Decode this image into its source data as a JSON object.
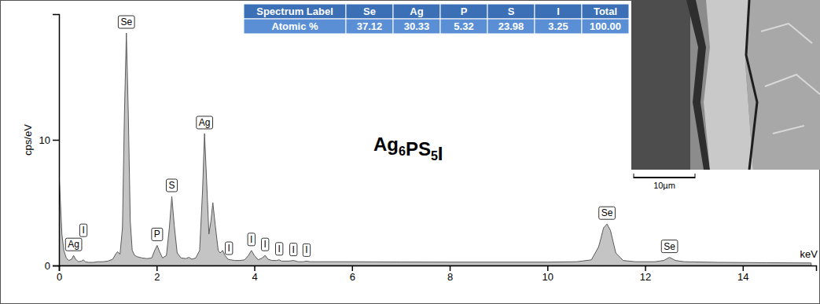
{
  "chart_data": {
    "type": "area",
    "title": "Ag6PS5I",
    "x_label": "keV",
    "y_label": "cps/eV",
    "color": "#c4c4c4",
    "grid": false,
    "xlim": [
      0,
      15.5
    ],
    "ylim": [
      0,
      20
    ],
    "xticks": [
      0,
      2,
      4,
      6,
      8,
      10,
      12,
      14
    ],
    "yticks": [
      0,
      10
    ],
    "x": [
      0,
      0.03,
      0.06,
      0.1,
      0.15,
      0.2,
      0.26,
      0.3,
      0.34,
      0.4,
      0.46,
      0.5,
      0.54,
      0.6,
      0.7,
      0.8,
      0.9,
      1.0,
      1.1,
      1.16,
      1.2,
      1.25,
      1.3,
      1.34,
      1.38,
      1.42,
      1.46,
      1.5,
      1.55,
      1.6,
      1.7,
      1.8,
      1.9,
      1.96,
      2.01,
      2.06,
      2.12,
      2.2,
      2.26,
      2.31,
      2.36,
      2.42,
      2.5,
      2.6,
      2.66,
      2.72,
      2.8,
      2.88,
      2.94,
      2.98,
      3.02,
      3.07,
      3.11,
      3.15,
      3.2,
      3.26,
      3.3,
      3.35,
      3.4,
      3.46,
      3.52,
      3.6,
      3.7,
      3.8,
      3.88,
      3.94,
      4.0,
      4.08,
      4.16,
      4.22,
      4.28,
      4.36,
      4.45,
      4.51,
      4.56,
      4.7,
      4.8,
      4.9,
      5.0,
      5.07,
      5.14,
      5.3,
      5.6,
      6,
      7,
      8,
      9,
      10,
      10.6,
      10.9,
      11.05,
      11.15,
      11.22,
      11.29,
      11.4,
      11.55,
      11.8,
      12.2,
      12.38,
      12.5,
      12.62,
      12.8,
      13.5,
      14.5,
      15.4
    ],
    "values": [
      7.5,
      5,
      2.5,
      1.2,
      0.6,
      0.4,
      0.5,
      0.8,
      0.5,
      0.3,
      0.35,
      0.45,
      0.3,
      0.25,
      0.25,
      0.3,
      0.3,
      0.35,
      0.5,
      0.9,
      1.1,
      0.9,
      3,
      12,
      18.5,
      12,
      3.5,
      1.2,
      0.8,
      0.7,
      0.6,
      0.55,
      0.6,
      1.2,
      1.6,
      1.1,
      0.6,
      0.8,
      3,
      5.5,
      3.2,
      1.0,
      0.6,
      0.55,
      0.65,
      0.5,
      0.6,
      1.2,
      6,
      10.5,
      7,
      2.5,
      3.5,
      5.0,
      3.2,
      1.2,
      1.0,
      1.2,
      0.8,
      0.5,
      0.45,
      0.4,
      0.4,
      0.45,
      0.8,
      1.2,
      0.8,
      0.45,
      0.6,
      0.8,
      0.5,
      0.4,
      0.4,
      0.45,
      0.35,
      0.35,
      0.4,
      0.3,
      0.3,
      0.35,
      0.3,
      0.3,
      0.3,
      0.3,
      0.28,
      0.27,
      0.27,
      0.27,
      0.3,
      0.45,
      1.5,
      3.0,
      3.3,
      2.8,
      1.0,
      0.4,
      0.3,
      0.3,
      0.4,
      0.65,
      0.4,
      0.3,
      0.25,
      0.22,
      0.2
    ],
    "annotations": [
      {
        "text": "Ag",
        "x": 0.3
      },
      {
        "text": "I",
        "x": 0.5
      },
      {
        "text": "Se",
        "x": 1.38
      },
      {
        "text": "P",
        "x": 2.01
      },
      {
        "text": "S",
        "x": 2.31
      },
      {
        "text": "Ag",
        "x": 2.98
      },
      {
        "text": "I",
        "x": 3.48
      },
      {
        "text": "I",
        "x": 3.94
      },
      {
        "text": "I",
        "x": 4.22
      },
      {
        "text": "I",
        "x": 4.51
      },
      {
        "text": "I",
        "x": 4.8
      },
      {
        "text": "I",
        "x": 5.07
      },
      {
        "text": "Se",
        "x": 11.22
      },
      {
        "text": "Se",
        "x": 12.5
      }
    ]
  },
  "table": {
    "header": [
      "Spectrum Label",
      "Se",
      "Ag",
      "P",
      "S",
      "I",
      "Total"
    ],
    "rows": [
      [
        "Atomic %",
        "37.12",
        "30.33",
        "5.32",
        "23.98",
        "3.25",
        "100.00"
      ]
    ]
  },
  "image": {
    "scale_bar": "10µm"
  }
}
